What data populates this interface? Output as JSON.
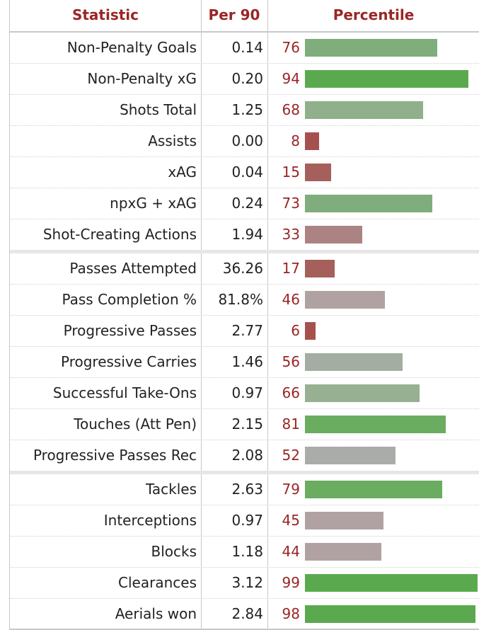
{
  "headers": {
    "statistic": "Statistic",
    "per90": "Per 90",
    "percentile": "Percentile"
  },
  "groups": [
    {
      "rows": [
        {
          "stat": "Non-Penalty Goals",
          "per90": "0.14",
          "percentile": 76,
          "color": "#7fad7c"
        },
        {
          "stat": "Non-Penalty xG",
          "per90": "0.20",
          "percentile": 94,
          "color": "#5ba94f"
        },
        {
          "stat": "Shots Total",
          "per90": "1.25",
          "percentile": 68,
          "color": "#8fb08a"
        },
        {
          "stat": "Assists",
          "per90": "0.00",
          "percentile": 8,
          "color": "#a6514e"
        },
        {
          "stat": "xAG",
          "per90": "0.04",
          "percentile": 15,
          "color": "#a5605c"
        },
        {
          "stat": "npxG + xAG",
          "per90": "0.24",
          "percentile": 73,
          "color": "#7fad7c"
        },
        {
          "stat": "Shot-Creating Actions",
          "per90": "1.94",
          "percentile": 33,
          "color": "#ab8383"
        }
      ]
    },
    {
      "rows": [
        {
          "stat": "Passes Attempted",
          "per90": "36.26",
          "percentile": 17,
          "color": "#a5605c"
        },
        {
          "stat": "Pass Completion %",
          "per90": "81.8%",
          "percentile": 46,
          "color": "#b0a2a3"
        },
        {
          "stat": "Progressive Passes",
          "per90": "2.77",
          "percentile": 6,
          "color": "#a6514e"
        },
        {
          "stat": "Progressive Carries",
          "per90": "1.46",
          "percentile": 56,
          "color": "#a3ada1"
        },
        {
          "stat": "Successful Take-Ons",
          "per90": "0.97",
          "percentile": 66,
          "color": "#96b091"
        },
        {
          "stat": "Touches (Att Pen)",
          "per90": "2.15",
          "percentile": 81,
          "color": "#6aac60"
        },
        {
          "stat": "Progressive Passes Rec",
          "per90": "2.08",
          "percentile": 52,
          "color": "#aaacaa"
        }
      ]
    },
    {
      "rows": [
        {
          "stat": "Tackles",
          "per90": "2.63",
          "percentile": 79,
          "color": "#6aac60"
        },
        {
          "stat": "Interceptions",
          "per90": "0.97",
          "percentile": 45,
          "color": "#b0a2a3"
        },
        {
          "stat": "Blocks",
          "per90": "1.18",
          "percentile": 44,
          "color": "#b0a2a3"
        },
        {
          "stat": "Clearances",
          "per90": "3.12",
          "percentile": 99,
          "color": "#5ba94f"
        },
        {
          "stat": "Aerials won",
          "per90": "2.84",
          "percentile": 98,
          "color": "#5ba94f"
        }
      ]
    }
  ]
}
